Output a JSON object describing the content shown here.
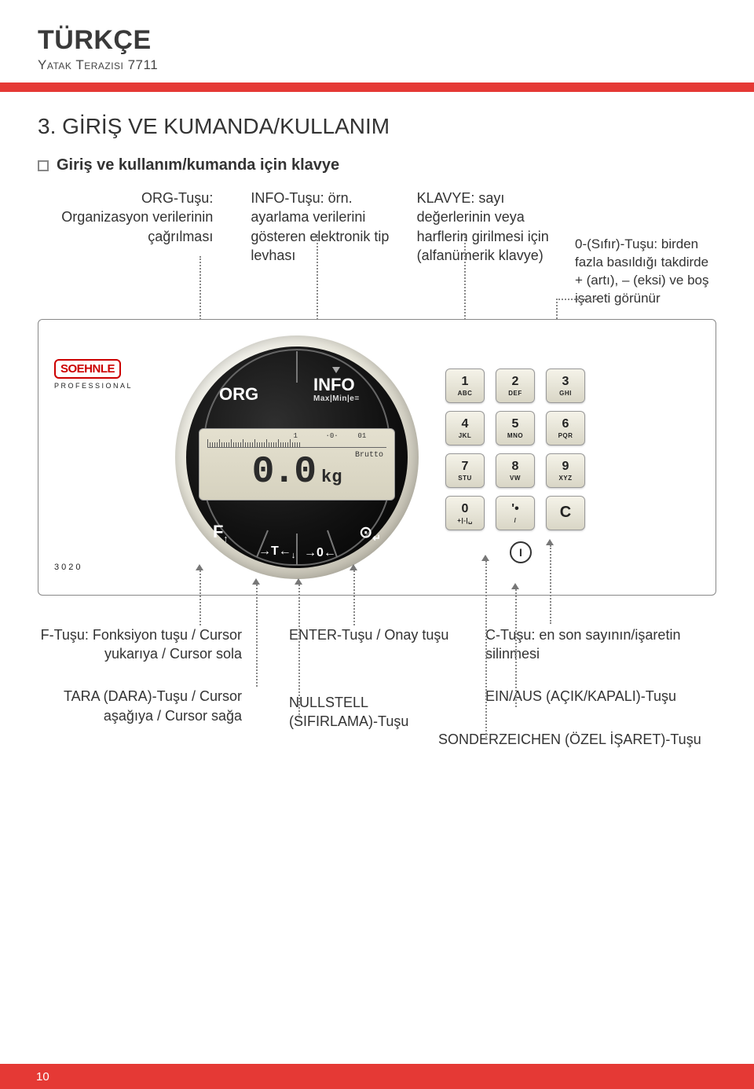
{
  "page": {
    "language": "TÜRKÇE",
    "subtitle": "Yatak Terazisi 7711",
    "section_title": "3. GİRİŞ VE KUMANDA/KULLANIM",
    "section_sub": "Giriş ve kullanım/kumanda için klavye",
    "page_number": "10"
  },
  "annotations_top": {
    "org": "ORG-Tuşu: Organizasyon verilerinin çağrılması",
    "info": "INFO-Tuşu: örn. ayarlama verilerini gösteren elektronik tip levhası",
    "keypad": "KLAVYE: sayı değerlerinin veya harflerin girilmesi için (alfanümerik klavye)",
    "zero_key": "0-(Sıfır)-Tuşu: birden fazla basıldığı takdirde + (artı), – (eksi) ve boş işareti görünür"
  },
  "annotations_bottom": {
    "f_key": "F-Tuşu: Fonksiyon tuşu / Cursor yukarıya / Cursor sola",
    "tara": "TARA (DARA)-Tuşu / Cursor aşağıya / Cursor sağa",
    "enter": "ENTER-Tuşu / Onay tuşu",
    "nullstell": "NULLSTELL (SIFIRLAMA)-Tuşu",
    "c_key": "C-Tuşu: en son sayının/işaretin silinmesi",
    "ein_aus": "EIN/AUS (AÇIK/KAPALI)-Tuşu",
    "sonder": "SONDERZEICHEN (ÖZEL İŞARET)-Tuşu"
  },
  "device": {
    "brand": "SOEHNLE",
    "brand_sub": "PROFESSIONAL",
    "model": "3020",
    "dial": {
      "org": "ORG",
      "info": "INFO",
      "info_sub": "Max|Min|e=",
      "f": "F",
      "f_arrow": "↑",
      "t": "→T←",
      "t_arrow": "↓",
      "zero": "→0←",
      "enter_sym": "⊙",
      "enter_arrow": "↵"
    },
    "display": {
      "ruler_center": "1",
      "ruler_right1": "·0·",
      "ruler_right2": "01",
      "brutto": "Brutto",
      "value": "0.0",
      "unit": "kg"
    },
    "keypad": [
      {
        "num": "1",
        "letters": "ABC"
      },
      {
        "num": "2",
        "letters": "DEF"
      },
      {
        "num": "3",
        "letters": "GHI"
      },
      {
        "num": "4",
        "letters": "JKL"
      },
      {
        "num": "5",
        "letters": "MNO"
      },
      {
        "num": "6",
        "letters": "PQR"
      },
      {
        "num": "7",
        "letters": "STU"
      },
      {
        "num": "8",
        "letters": "VW"
      },
      {
        "num": "9",
        "letters": "XYZ"
      },
      {
        "num": "0",
        "letters": "+|-|␣"
      },
      {
        "num": "'•",
        "letters": "/"
      },
      {
        "num": "C",
        "letters": ""
      }
    ],
    "power": "I"
  },
  "colors": {
    "accent": "#e53935",
    "brand": "#c00",
    "text": "#2d2d2d",
    "dotted": "#888",
    "key_bg_top": "#f5f3e9",
    "key_bg_bot": "#d9d6c6",
    "dial_outer": "#eceade",
    "dial_inner": "#121212",
    "display_bg": "#d6d2bf"
  }
}
